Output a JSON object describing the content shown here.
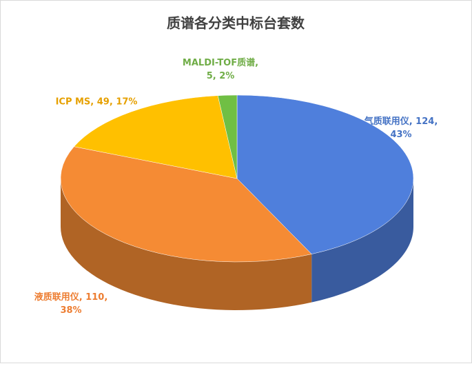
{
  "chart_data": {
    "type": "pie3d",
    "title": "质谱各分类中标台套数",
    "values": [
      124,
      110,
      49,
      5
    ],
    "value_labels": [
      "气质联用仪, 124, 43%",
      "液质联用仪, 110, 38%",
      "ICP MS, 49, 17%",
      "MALDI-TOF质谱, 5, 2%"
    ],
    "colors": [
      "#4f7fdc",
      "#f58b34",
      "#ffc000",
      "#70bf44"
    ],
    "label_colors": [
      "#4472c4",
      "#ed7d31",
      "#e6a000",
      "#70ad47"
    ]
  }
}
